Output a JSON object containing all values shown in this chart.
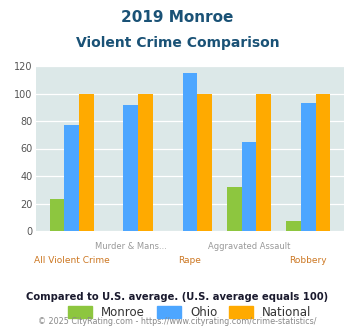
{
  "title_line1": "2019 Monroe",
  "title_line2": "Violent Crime Comparison",
  "categories": [
    "All Violent Crime",
    "Murder & Mans...",
    "Rape",
    "Aggravated Assault",
    "Robbery"
  ],
  "top_labels": [
    "",
    "Murder & Mans...",
    "",
    "Aggravated Assault",
    ""
  ],
  "bot_labels": [
    "All Violent Crime",
    "",
    "Rape",
    "",
    "Robbery"
  ],
  "monroe": [
    23,
    0,
    0,
    32,
    7
  ],
  "ohio": [
    77,
    92,
    115,
    65,
    93
  ],
  "national": [
    100,
    100,
    100,
    100,
    100
  ],
  "monroe_color": "#8dc63f",
  "ohio_color": "#4da6ff",
  "national_color": "#ffaa00",
  "bg_color": "#dce8e8",
  "ylim": [
    0,
    120
  ],
  "yticks": [
    0,
    20,
    40,
    60,
    80,
    100,
    120
  ],
  "title_color": "#1a5276",
  "top_label_color": "#999999",
  "bot_label_color": "#cc7722",
  "footnote1": "Compared to U.S. average. (U.S. average equals 100)",
  "footnote2": "© 2025 CityRating.com - https://www.cityrating.com/crime-statistics/",
  "footnote2_color": "#4da6ff",
  "legend_labels": [
    "Monroe",
    "Ohio",
    "National"
  ],
  "bar_width": 0.25
}
